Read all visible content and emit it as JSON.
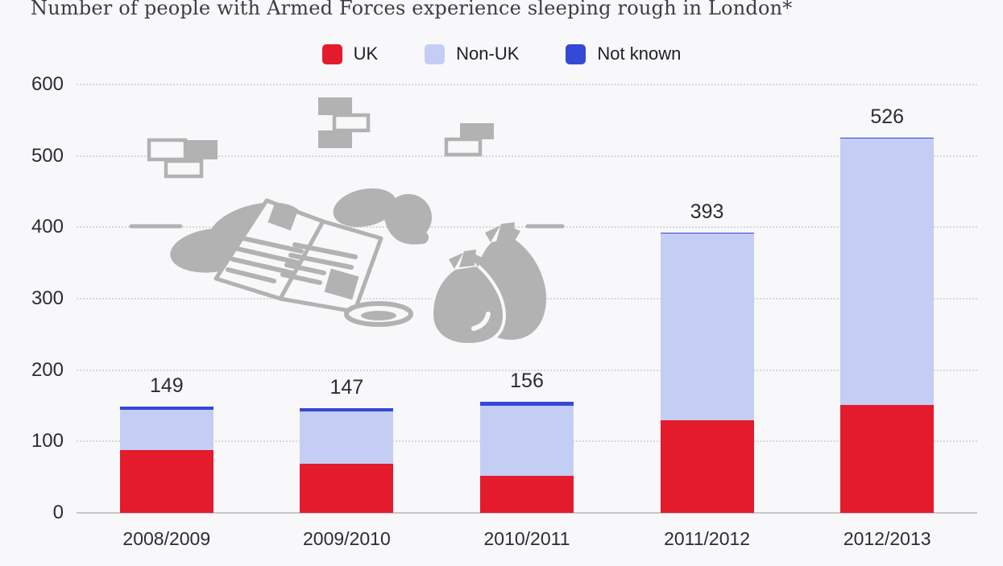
{
  "page": {
    "background": "#f8f8fa"
  },
  "header": {
    "title": "Number of people with Armed Forces experience sleeping rough in London*"
  },
  "legend": {
    "position": "top-center",
    "items": [
      {
        "label": "UK",
        "color": "#e41b2c"
      },
      {
        "label": "Non-UK",
        "color": "#c4cdf3"
      },
      {
        "label": "Not known",
        "color": "#3449d8"
      }
    ]
  },
  "chart_data": {
    "type": "bar",
    "stacked": true,
    "title": "Number of people with Armed Forces experience sleeping rough in London*",
    "categories": [
      "2008/2009",
      "2009/2010",
      "2010/2011",
      "2011/2012",
      "2012/2013"
    ],
    "series": [
      {
        "name": "UK",
        "color": "#e41b2c",
        "values": [
          88,
          69,
          52,
          130,
          151
        ]
      },
      {
        "name": "Non-UK",
        "color": "#c4cdf3",
        "values": [
          56,
          73,
          98,
          261,
          373
        ]
      },
      {
        "name": "Not known",
        "color": "#3449d8",
        "values": [
          5,
          5,
          6,
          2,
          2
        ]
      }
    ],
    "totals": [
      149,
      147,
      156,
      393,
      526
    ],
    "xlabel": "",
    "ylabel": "",
    "ylim": [
      0,
      600
    ],
    "yticks": [
      0,
      100,
      200,
      300,
      400,
      500,
      600
    ],
    "grid": "horizontal-dotted",
    "legend_position": "top"
  },
  "illustration": {
    "name": "person-sleeping-rough-illustration",
    "description": "gray icon: person lying under open newspaper, refuse bags, begging bowl, bricks",
    "color": "#b2b2b2"
  },
  "colors": {
    "background": "#f8f8fa",
    "gridline": "#d8d8db",
    "axis_line": "#c7c7ca",
    "text": "#2d2d30",
    "illustration_gray": "#b2b2b2"
  }
}
